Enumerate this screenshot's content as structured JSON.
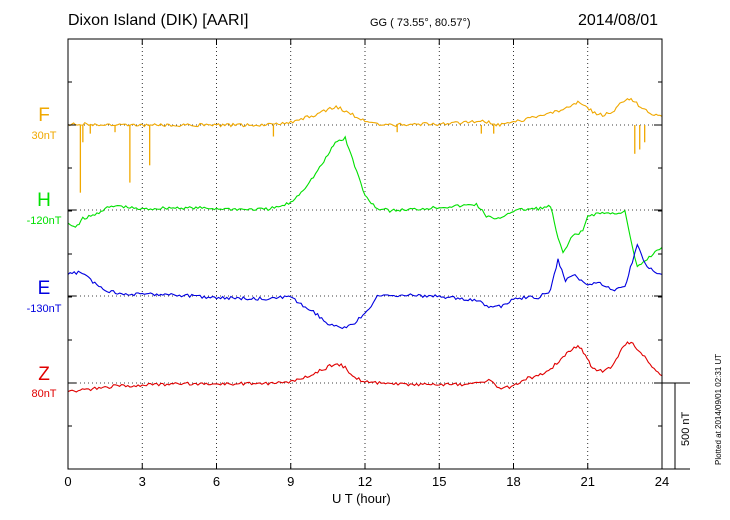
{
  "header": {
    "title": "Dixon Island (DIK)  [AARI]",
    "coords": "GG ( 73.55°,  80.57°)",
    "date": "2014/08/01"
  },
  "plotted_note": "Plotted at 2014/09/01 02:31 UT",
  "scale_bar_label": "500 nT",
  "chart_data": {
    "type": "line",
    "xlabel": "U T (hour)",
    "xlim": [
      0,
      24
    ],
    "xticks": [
      0,
      3,
      6,
      9,
      12,
      15,
      18,
      21,
      24
    ],
    "grid": true,
    "scale_bar_nT": 500,
    "series": [
      {
        "name": "F",
        "baseline_label": "30nT",
        "color": "#f0a800",
        "points": [
          [
            0,
            5
          ],
          [
            0.3,
            8
          ],
          [
            0.6,
            5
          ],
          [
            1,
            4
          ],
          [
            1.5,
            2
          ],
          [
            2,
            1
          ],
          [
            3,
            0
          ],
          [
            4,
            0
          ],
          [
            5,
            -1
          ],
          [
            6,
            0
          ],
          [
            7,
            0
          ],
          [
            8,
            0
          ],
          [
            8.5,
            5
          ],
          [
            9,
            20
          ],
          [
            9.5,
            45
          ],
          [
            10,
            70
          ],
          [
            10.5,
            110
          ],
          [
            10.75,
            125
          ],
          [
            11,
            115
          ],
          [
            11.5,
            70
          ],
          [
            12,
            25
          ],
          [
            12.5,
            5
          ],
          [
            13,
            0
          ],
          [
            14,
            5
          ],
          [
            15,
            8
          ],
          [
            16,
            15
          ],
          [
            16.5,
            25
          ],
          [
            17,
            20
          ],
          [
            17.3,
            -5
          ],
          [
            17.6,
            10
          ],
          [
            18,
            20
          ],
          [
            18.5,
            40
          ],
          [
            19,
            60
          ],
          [
            19.5,
            80
          ],
          [
            20,
            110
          ],
          [
            20.3,
            130
          ],
          [
            20.6,
            165
          ],
          [
            20.9,
            140
          ],
          [
            21.2,
            90
          ],
          [
            21.6,
            70
          ],
          [
            22,
            85
          ],
          [
            22.3,
            150
          ],
          [
            22.6,
            185
          ],
          [
            22.9,
            170
          ],
          [
            23.2,
            110
          ],
          [
            23.6,
            80
          ],
          [
            24,
            60
          ]
        ],
        "spikes": [
          [
            0.5,
            -470
          ],
          [
            0.6,
            -120
          ],
          [
            0.9,
            -60
          ],
          [
            1.9,
            -50
          ],
          [
            2.5,
            -400
          ],
          [
            3.3,
            -280
          ],
          [
            8.3,
            -80
          ],
          [
            13.3,
            -50
          ],
          [
            16.7,
            -60
          ],
          [
            17.2,
            -60
          ],
          [
            22.9,
            -200
          ],
          [
            23.1,
            -170
          ],
          [
            23.3,
            -120
          ]
        ]
      },
      {
        "name": "H",
        "baseline_label": "-120nT",
        "color": "#00e000",
        "points": [
          [
            0,
            -90
          ],
          [
            0.3,
            -120
          ],
          [
            0.6,
            -60
          ],
          [
            1,
            -40
          ],
          [
            1.5,
            10
          ],
          [
            2,
            30
          ],
          [
            2.5,
            15
          ],
          [
            3,
            5
          ],
          [
            4,
            15
          ],
          [
            5,
            15
          ],
          [
            6,
            10
          ],
          [
            7,
            5
          ],
          [
            8,
            5
          ],
          [
            8.5,
            20
          ],
          [
            9,
            50
          ],
          [
            9.5,
            140
          ],
          [
            10,
            250
          ],
          [
            10.5,
            380
          ],
          [
            10.8,
            470
          ],
          [
            11.2,
            500
          ],
          [
            11.5,
            350
          ],
          [
            12,
            100
          ],
          [
            12.5,
            10
          ],
          [
            13,
            -5
          ],
          [
            14,
            5
          ],
          [
            15,
            20
          ],
          [
            16,
            30
          ],
          [
            16.5,
            40
          ],
          [
            16.9,
            -40
          ],
          [
            17.3,
            -70
          ],
          [
            17.7,
            -30
          ],
          [
            18,
            -5
          ],
          [
            18.5,
            5
          ],
          [
            19,
            10
          ],
          [
            19.5,
            25
          ],
          [
            19.8,
            -200
          ],
          [
            20,
            -300
          ],
          [
            20.4,
            -180
          ],
          [
            20.8,
            -150
          ],
          [
            21,
            -40
          ],
          [
            21.5,
            -20
          ],
          [
            22,
            -25
          ],
          [
            22.5,
            -10
          ],
          [
            22.8,
            -260
          ],
          [
            23,
            -400
          ],
          [
            23.4,
            -340
          ],
          [
            23.8,
            -280
          ],
          [
            24,
            -260
          ]
        ]
      },
      {
        "name": "E",
        "baseline_label": "-130nT",
        "color": "#0000e0",
        "points": [
          [
            0,
            150
          ],
          [
            0.5,
            165
          ],
          [
            1,
            100
          ],
          [
            1.5,
            40
          ],
          [
            2,
            20
          ],
          [
            3,
            10
          ],
          [
            4,
            15
          ],
          [
            5,
            0
          ],
          [
            6,
            -10
          ],
          [
            7,
            -15
          ],
          [
            8,
            -20
          ],
          [
            8.5,
            -10
          ],
          [
            9,
            -10
          ],
          [
            9.5,
            -70
          ],
          [
            10,
            -120
          ],
          [
            10.5,
            -200
          ],
          [
            11,
            -220
          ],
          [
            11.5,
            -200
          ],
          [
            12,
            -120
          ],
          [
            12.5,
            -5
          ],
          [
            13,
            5
          ],
          [
            14,
            5
          ],
          [
            15,
            -5
          ],
          [
            16,
            -20
          ],
          [
            16.5,
            -25
          ],
          [
            17,
            -80
          ],
          [
            17.5,
            -70
          ],
          [
            18,
            -20
          ],
          [
            18.5,
            -10
          ],
          [
            19,
            -10
          ],
          [
            19.5,
            40
          ],
          [
            19.8,
            250
          ],
          [
            20.1,
            100
          ],
          [
            20.4,
            150
          ],
          [
            21,
            80
          ],
          [
            21.5,
            90
          ],
          [
            22,
            40
          ],
          [
            22.5,
            60
          ],
          [
            22.8,
            240
          ],
          [
            23,
            350
          ],
          [
            23.4,
            200
          ],
          [
            23.8,
            160
          ],
          [
            24,
            150
          ]
        ]
      },
      {
        "name": "Z",
        "baseline_label": "80nT",
        "color": "#e00000",
        "points": [
          [
            0,
            -60
          ],
          [
            1,
            -40
          ],
          [
            2,
            -20
          ],
          [
            3,
            -15
          ],
          [
            4,
            -10
          ],
          [
            5,
            -5
          ],
          [
            6,
            -5
          ],
          [
            7,
            -5
          ],
          [
            8,
            -5
          ],
          [
            9,
            10
          ],
          [
            9.5,
            30
          ],
          [
            10,
            70
          ],
          [
            10.5,
            110
          ],
          [
            10.8,
            140
          ],
          [
            11.2,
            110
          ],
          [
            11.5,
            40
          ],
          [
            12,
            10
          ],
          [
            13,
            -5
          ],
          [
            14,
            -10
          ],
          [
            15,
            -10
          ],
          [
            16,
            -10
          ],
          [
            16.5,
            -5
          ],
          [
            17,
            20
          ],
          [
            17.5,
            -40
          ],
          [
            18,
            -20
          ],
          [
            18.5,
            30
          ],
          [
            19,
            50
          ],
          [
            19.5,
            100
          ],
          [
            20,
            180
          ],
          [
            20.3,
            230
          ],
          [
            20.6,
            260
          ],
          [
            20.9,
            200
          ],
          [
            21.2,
            100
          ],
          [
            21.6,
            80
          ],
          [
            22,
            110
          ],
          [
            22.3,
            220
          ],
          [
            22.6,
            290
          ],
          [
            22.9,
            260
          ],
          [
            23.3,
            180
          ],
          [
            23.6,
            120
          ],
          [
            24,
            50
          ]
        ]
      }
    ]
  }
}
